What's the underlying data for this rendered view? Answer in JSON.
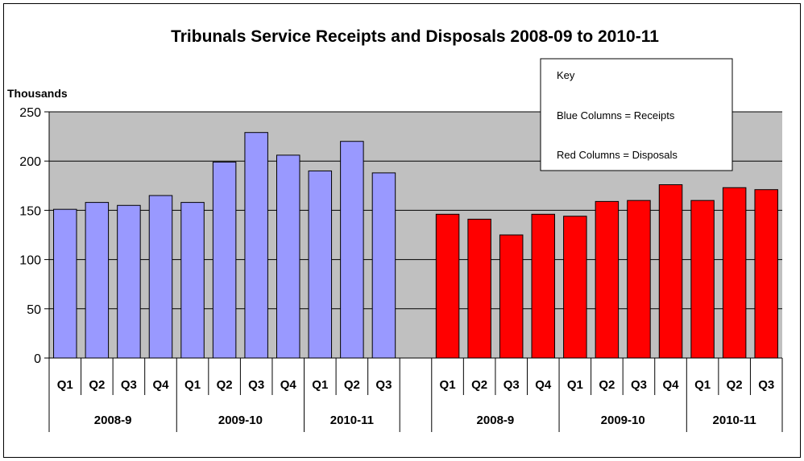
{
  "chart_data": {
    "type": "bar",
    "title": "Tribunals Service Receipts and Disposals 2008-09 to 2010-11",
    "ylabel": "Thousands",
    "ylim": [
      0,
      250
    ],
    "yticks": [
      0,
      50,
      100,
      150,
      200,
      250
    ],
    "grid": true,
    "legend": {
      "placement": "top-right",
      "lines": [
        "Key",
        "Blue Columns = Receipts",
        "Red Columns = Disposals"
      ]
    },
    "colors": {
      "receipts": "#9999ff",
      "disposals": "#ff0000",
      "plot_background": "#c0c0c0"
    },
    "groups": [
      {
        "name": "Receipts",
        "color": "#9999ff",
        "categories": [
          "Q1",
          "Q2",
          "Q3",
          "Q4",
          "Q1",
          "Q2",
          "Q3",
          "Q4",
          "Q1",
          "Q2",
          "Q3"
        ],
        "years": [
          {
            "label": "2008-9",
            "quarters": 4
          },
          {
            "label": "2009-10",
            "quarters": 4
          },
          {
            "label": "2010-11",
            "quarters": 3
          }
        ],
        "values": [
          151,
          158,
          155,
          165,
          158,
          199,
          229,
          206,
          190,
          220,
          188
        ]
      },
      {
        "name": "Disposals",
        "color": "#ff0000",
        "categories": [
          "Q1",
          "Q2",
          "Q3",
          "Q4",
          "Q1",
          "Q2",
          "Q3",
          "Q4",
          "Q1",
          "Q2",
          "Q3"
        ],
        "years": [
          {
            "label": "2008-9",
            "quarters": 4
          },
          {
            "label": "2009-10",
            "quarters": 4
          },
          {
            "label": "2010-11",
            "quarters": 3
          }
        ],
        "values": [
          146,
          141,
          125,
          146,
          144,
          159,
          160,
          176,
          160,
          173,
          171
        ]
      }
    ]
  }
}
